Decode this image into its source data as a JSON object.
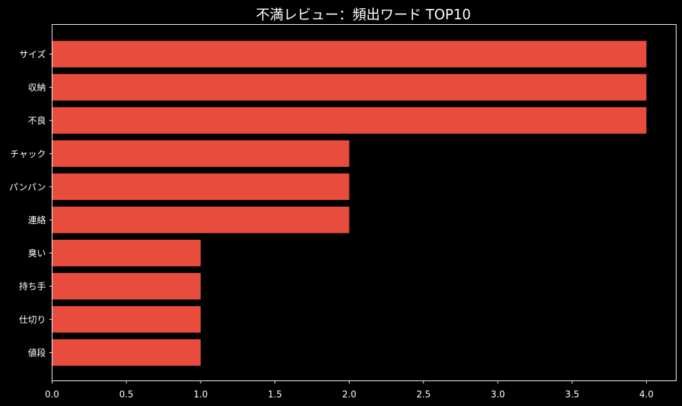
{
  "chart_data": {
    "type": "bar",
    "orientation": "horizontal",
    "title": "不満レビュー：頻出ワード TOP10",
    "xlabel": "",
    "ylabel": "",
    "categories": [
      "サイズ",
      "収納",
      "不良",
      "チャック",
      "パンパン",
      "連絡",
      "臭い",
      "持ち手",
      "仕切り",
      "値段"
    ],
    "values": [
      4,
      4,
      4,
      2,
      2,
      2,
      1,
      1,
      1,
      1
    ],
    "xlim": [
      0,
      4.2
    ],
    "xticks": [
      "0.0",
      "0.5",
      "1.0",
      "1.5",
      "2.0",
      "2.5",
      "3.0",
      "3.5",
      "4.0"
    ],
    "grid": false,
    "legend": "none",
    "colors": {
      "background": "#000000",
      "bar": "#e74c3c",
      "axis": "#ffffff",
      "text": "#ffffff"
    }
  }
}
